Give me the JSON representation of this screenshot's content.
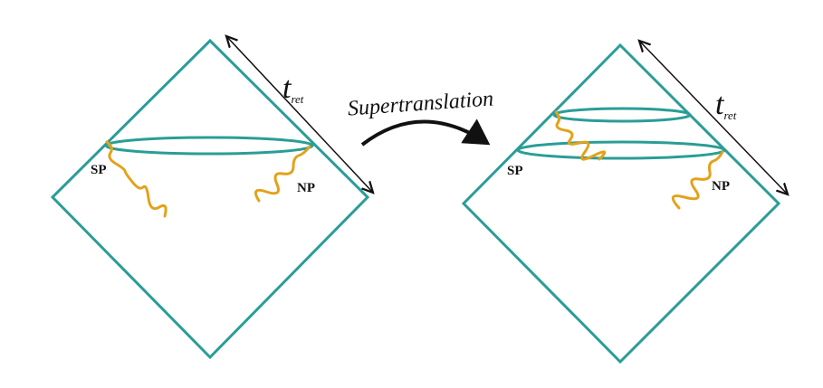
{
  "diagrams": [
    {
      "time_label": {
        "main": "t",
        "subscript": "ret"
      },
      "south_pole": "SP",
      "north_pole": "NP"
    },
    {
      "time_label": {
        "main": "t",
        "subscript": "ret"
      },
      "south_pole": "SP",
      "north_pole": "NP"
    }
  ],
  "transformation": {
    "label": "Supertranslation"
  }
}
